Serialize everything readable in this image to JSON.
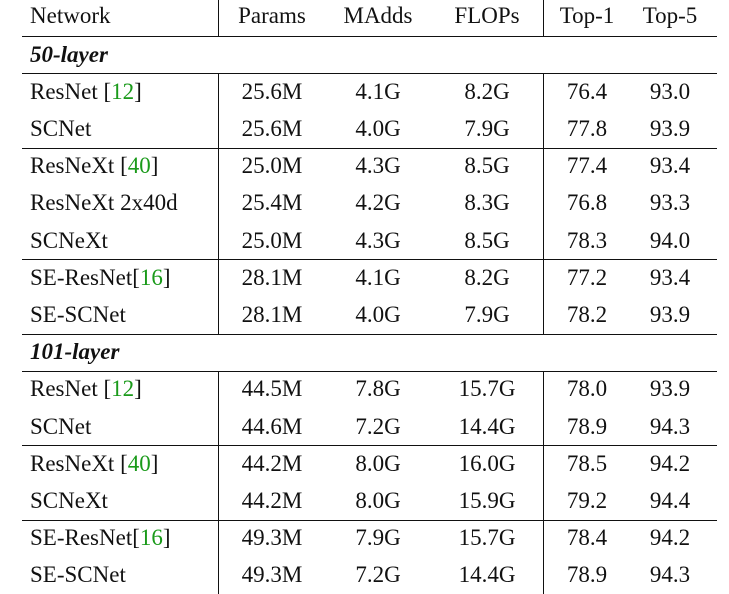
{
  "table": {
    "header": [
      "Network",
      "Params",
      "MAdds",
      "FLOPs",
      "Top-1",
      "Top-5"
    ],
    "sections": [
      {
        "title": "50-layer",
        "groups": [
          [
            [
              "ResNet [12]",
              "25.6M",
              "4.1G",
              "8.2G",
              "76.4",
              "93.0"
            ],
            [
              "SCNet",
              "25.6M",
              "4.0G",
              "7.9G",
              "77.8",
              "93.9"
            ]
          ],
          [
            [
              "ResNeXt [40]",
              "25.0M",
              "4.3G",
              "8.5G",
              "77.4",
              "93.4"
            ],
            [
              "ResNeXt 2x40d",
              "25.4M",
              "4.2G",
              "8.3G",
              "76.8",
              "93.3"
            ],
            [
              "SCNeXt",
              "25.0M",
              "4.3G",
              "8.5G",
              "78.3",
              "94.0"
            ]
          ],
          [
            [
              "SE-ResNet[16]",
              "28.1M",
              "4.1G",
              "8.2G",
              "77.2",
              "93.4"
            ],
            [
              "SE-SCNet",
              "28.1M",
              "4.0G",
              "7.9G",
              "78.2",
              "93.9"
            ]
          ]
        ]
      },
      {
        "title": "101-layer",
        "groups": [
          [
            [
              "ResNet [12]",
              "44.5M",
              "7.8G",
              "15.7G",
              "78.0",
              "93.9"
            ],
            [
              "SCNet",
              "44.6M",
              "7.2G",
              "14.4G",
              "78.9",
              "94.3"
            ]
          ],
          [
            [
              "ResNeXt [40]",
              "44.2M",
              "8.0G",
              "16.0G",
              "78.5",
              "94.2"
            ],
            [
              "SCNeXt",
              "44.2M",
              "8.0G",
              "15.9G",
              "79.2",
              "94.4"
            ]
          ],
          [
            [
              "SE-ResNet[16]",
              "49.3M",
              "7.9G",
              "15.7G",
              "78.4",
              "94.2"
            ],
            [
              "SE-SCNet",
              "49.3M",
              "7.2G",
              "14.4G",
              "78.9",
              "94.3"
            ]
          ]
        ]
      }
    ]
  }
}
